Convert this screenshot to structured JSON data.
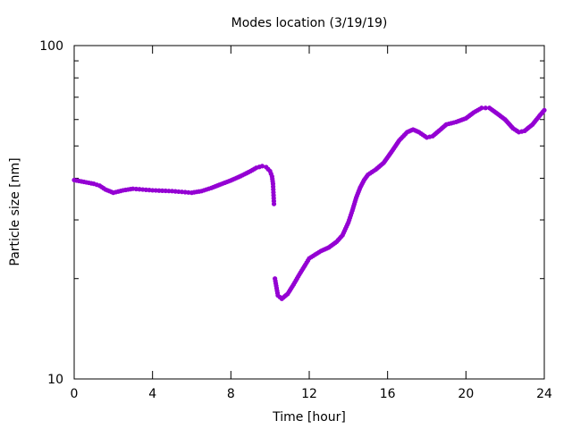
{
  "chart_data": {
    "type": "scatter",
    "title": "Modes location (3/19/19)",
    "xlabel": "Time [hour]",
    "ylabel": "Particle size [nm]",
    "xlim": [
      0,
      24
    ],
    "ylim": [
      10,
      100
    ],
    "yscale": "log",
    "xticks": [
      0,
      4,
      8,
      12,
      16,
      20,
      24
    ],
    "xtick_labels": [
      "0",
      "4",
      "8",
      "12",
      "16",
      "20",
      "24"
    ],
    "yticks": [
      10,
      100
    ],
    "ytick_labels": [
      "10",
      "100"
    ],
    "grid": false,
    "legend": false,
    "marker_color": "#9400d3",
    "series": [
      {
        "x": [
          0.0,
          0.5,
          1.0,
          1.3,
          1.6,
          2.0,
          2.5,
          3.0,
          3.5,
          4.0,
          4.5,
          5.0,
          5.5,
          6.0,
          6.5,
          7.0,
          7.5,
          8.0,
          8.5,
          9.0,
          9.3,
          9.6,
          9.8,
          10.0,
          10.1,
          10.15,
          10.2,
          10.25,
          10.4,
          10.6,
          10.9,
          11.2,
          11.5,
          11.8,
          12.0,
          12.3,
          12.6,
          13.0,
          13.4,
          13.7,
          14.0,
          14.2,
          14.4,
          14.6,
          14.8,
          15.0,
          15.4,
          15.8,
          16.2,
          16.6,
          17.0,
          17.3,
          17.6,
          18.0,
          18.3,
          18.7,
          19.0,
          19.5,
          20.0,
          20.4,
          20.8,
          21.2,
          21.6,
          22.0,
          22.4,
          22.7,
          23.0,
          23.4,
          23.8,
          24.0
        ],
        "y": [
          39.5,
          39.0,
          38.5,
          38.0,
          37.0,
          36.2,
          36.8,
          37.2,
          37.0,
          36.8,
          36.7,
          36.6,
          36.4,
          36.2,
          36.6,
          37.4,
          38.4,
          39.4,
          40.6,
          42.0,
          43.0,
          43.5,
          43.2,
          42.0,
          40.5,
          38.5,
          33.5,
          20.0,
          17.8,
          17.4,
          18.0,
          19.2,
          20.6,
          22.0,
          23.0,
          23.6,
          24.2,
          24.8,
          25.8,
          27.0,
          29.5,
          32.0,
          35.0,
          37.5,
          39.5,
          41.0,
          42.5,
          44.5,
          48.0,
          52.0,
          55.0,
          56.0,
          55.0,
          53.0,
          53.5,
          56.0,
          58.0,
          59.0,
          60.5,
          63.0,
          65.0,
          65.0,
          62.5,
          60.0,
          56.5,
          55.0,
          55.5,
          58.0,
          62.0,
          64.0
        ]
      }
    ]
  }
}
